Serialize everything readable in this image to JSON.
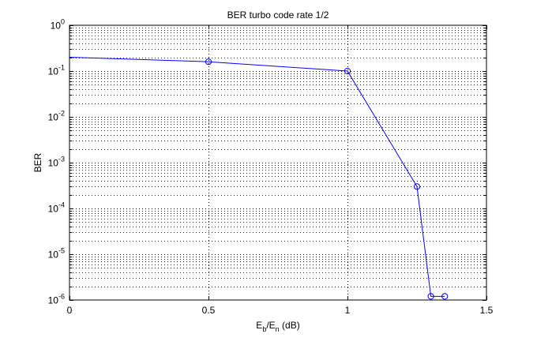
{
  "chart_data": {
    "type": "line",
    "title": "BER turbo code rate 1/2",
    "xlabel": {
      "main": "E",
      "sub1": "b",
      "mid": "/E",
      "sub2": "n",
      "tail": " (dB)"
    },
    "ylabel": "BER",
    "xlim": [
      0,
      1.5
    ],
    "ylim": [
      1e-06,
      1
    ],
    "yscale": "log",
    "x_ticks": [
      "0",
      "0.5",
      "1",
      "1.5"
    ],
    "x_tick_values": [
      0,
      0.5,
      1,
      1.5
    ],
    "y_tick_exponents": [
      "0",
      "-1",
      "-2",
      "-3",
      "-4",
      "-5",
      "-6"
    ],
    "y_tick_base": "10",
    "grid": "dotted",
    "color": "#0000ff",
    "series": [
      {
        "x": [
          0,
          0.5,
          1.0,
          1.25,
          1.3,
          1.35
        ],
        "y": [
          0.2,
          0.16,
          0.1,
          0.0003,
          1.2e-06,
          1.2e-06
        ],
        "marker_x": [
          0.5,
          1.0,
          1.25,
          1.3,
          1.35
        ],
        "marker_y": [
          0.16,
          0.1,
          0.0003,
          1.2e-06,
          1.2e-06
        ]
      }
    ]
  }
}
